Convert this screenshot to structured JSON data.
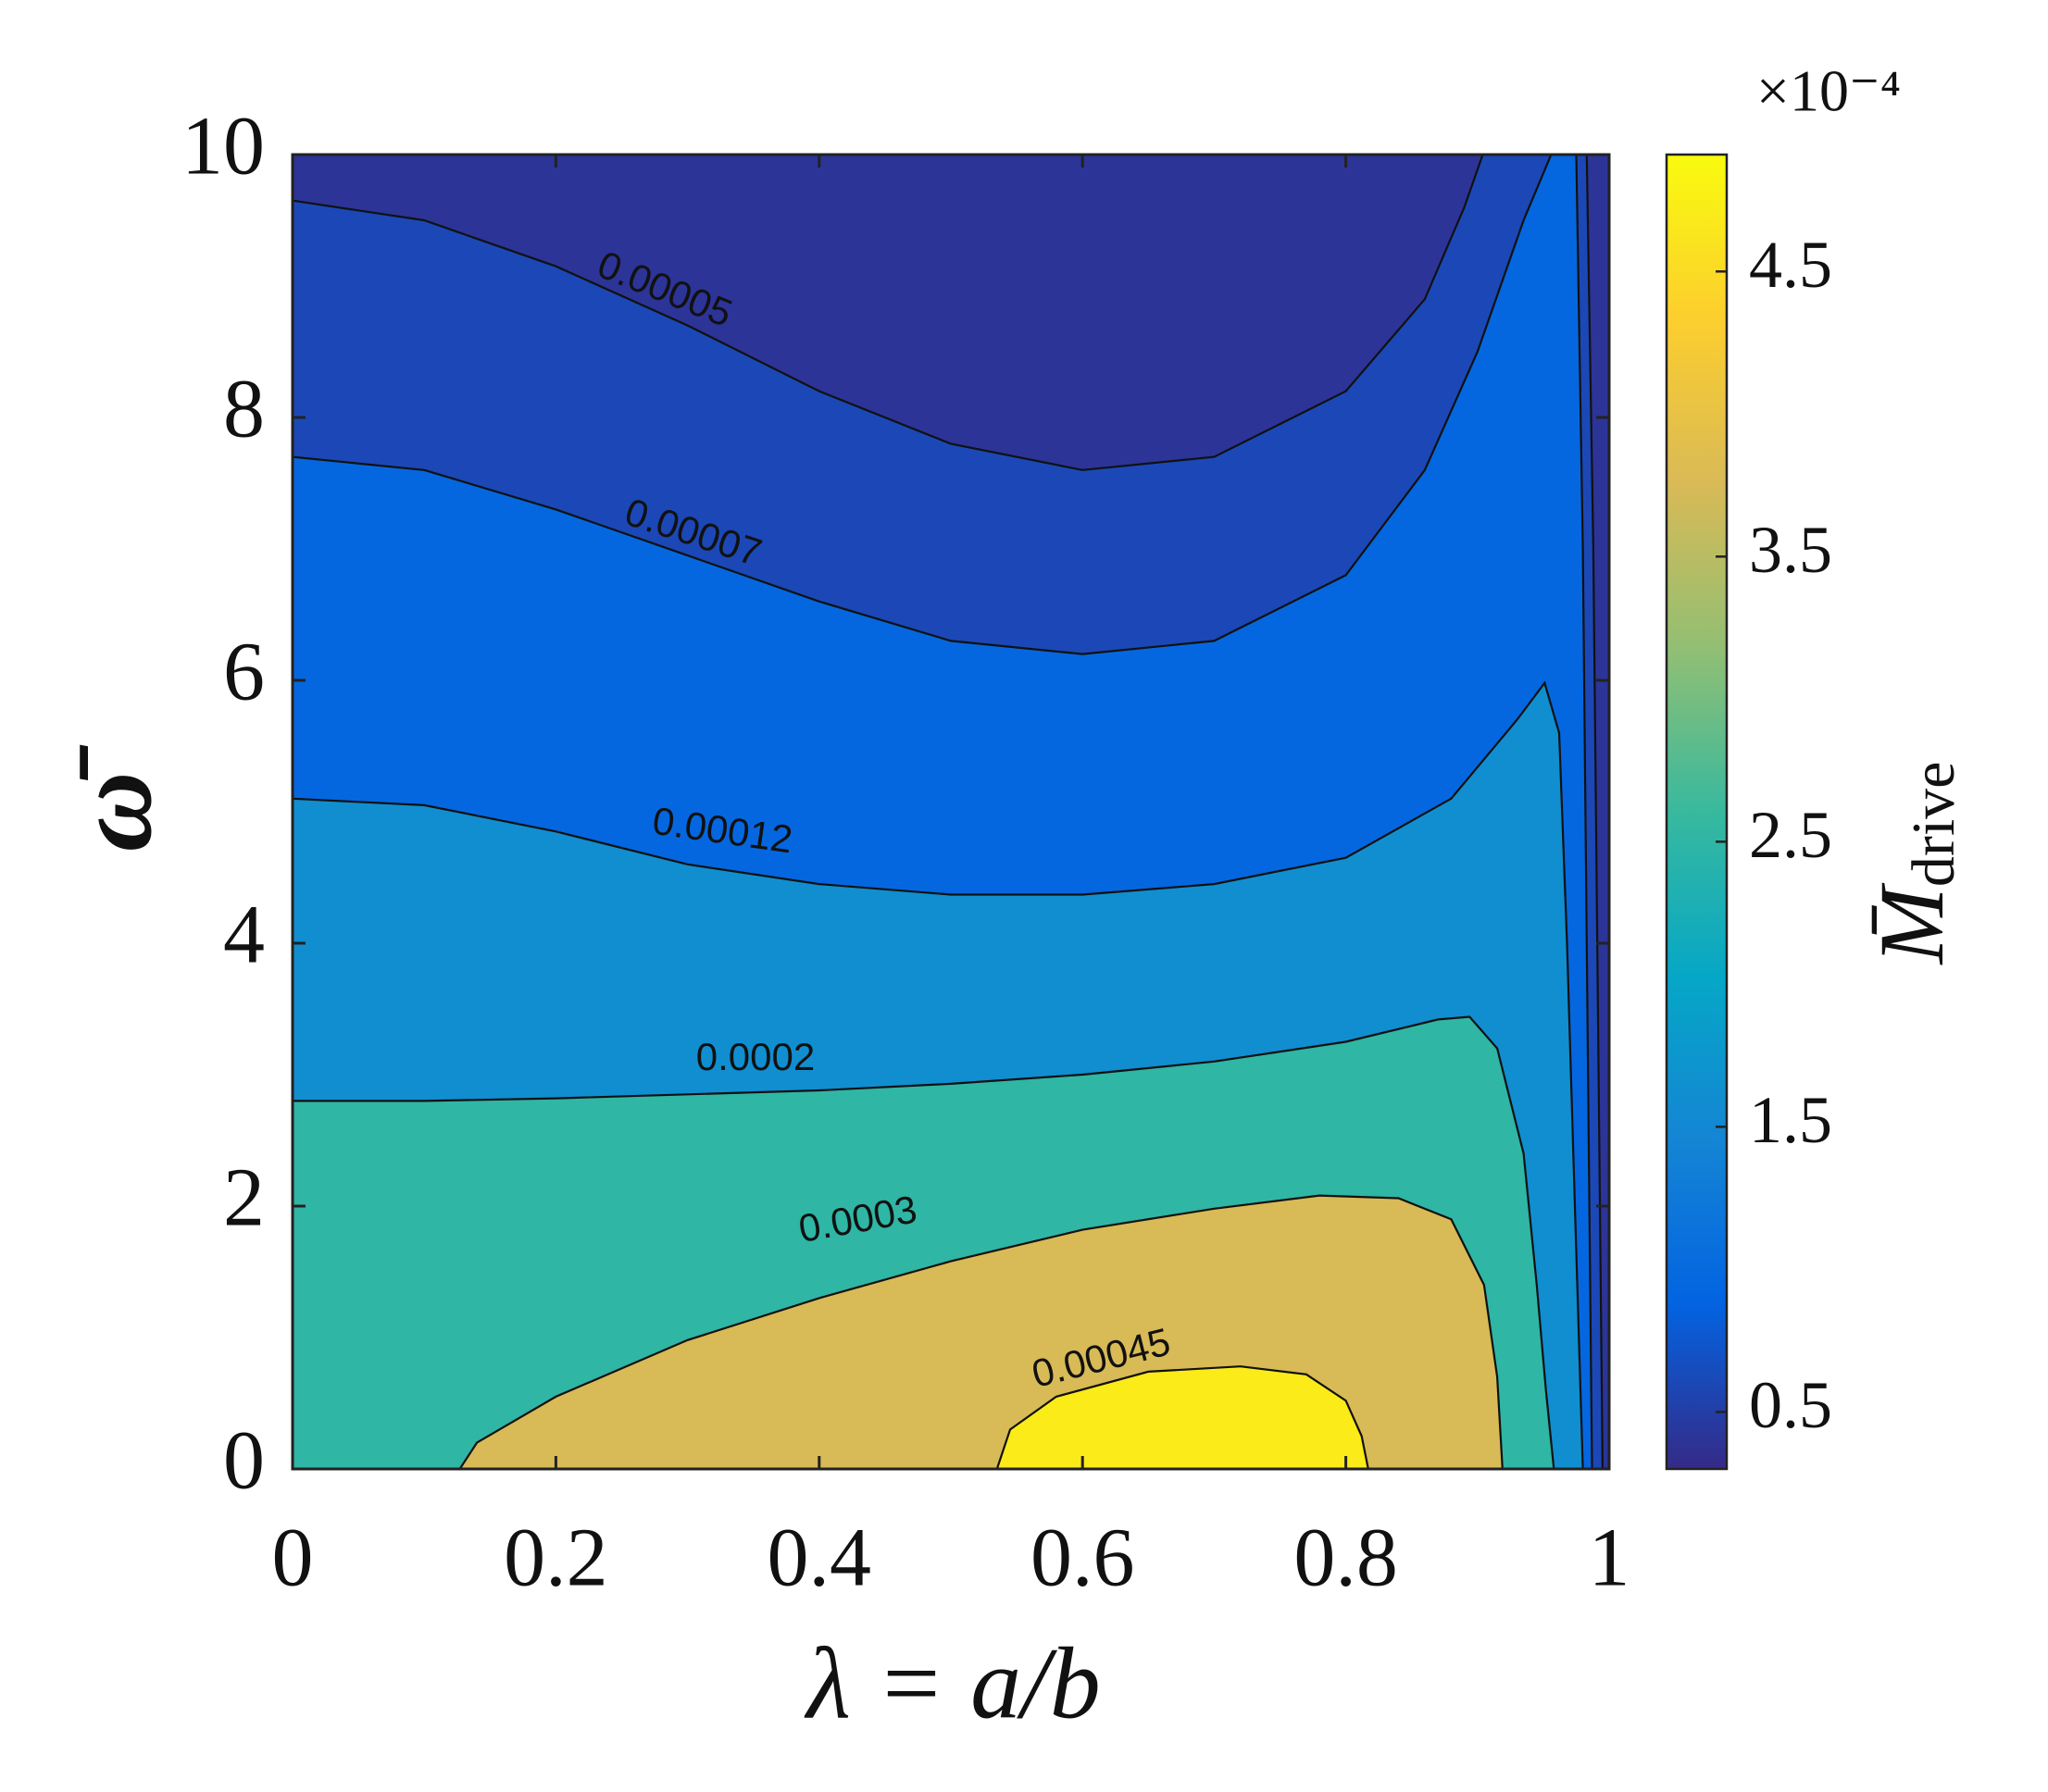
{
  "chart_data": {
    "type": "contour",
    "xlabel": "λ = a/b",
    "ylabel": "ω̄",
    "colorbar_symbol": "M̄",
    "colorbar_subscript": "drive",
    "colorbar_multiplier": "×10⁻⁴",
    "xlim": [
      0,
      1
    ],
    "ylim": [
      0,
      10
    ],
    "xticks": [
      0,
      0.2,
      0.4,
      0.6,
      0.8,
      1
    ],
    "yticks": [
      0,
      2,
      4,
      6,
      8,
      10
    ],
    "clim": [
      3e-05,
      0.000491
    ],
    "cticks": [
      {
        "value": 5e-05,
        "label": "0.5"
      },
      {
        "value": 0.00015,
        "label": "1.5"
      },
      {
        "value": 0.00025,
        "label": "2.5"
      },
      {
        "value": 0.00035,
        "label": "3.5"
      },
      {
        "value": 0.00045,
        "label": "4.5"
      }
    ],
    "colormap": "parula",
    "contours": [
      {
        "level": 5e-05,
        "x": [
          0,
          0.1,
          0.2,
          0.3,
          0.4,
          0.5,
          0.6,
          0.7,
          0.8,
          0.86,
          0.89,
          0.904,
          null,
          0.983,
          0.988,
          0.992,
          0.995
        ],
        "y": [
          9.65,
          9.5,
          9.15,
          8.7,
          8.2,
          7.8,
          7.6,
          7.7,
          8.2,
          8.9,
          9.6,
          10,
          null,
          10,
          7,
          3,
          0
        ]
      },
      {
        "level": 7e-05,
        "x": [
          0,
          0.1,
          0.2,
          0.3,
          0.4,
          0.5,
          0.6,
          0.7,
          0.8,
          0.86,
          0.9,
          0.935,
          0.956,
          null,
          0.975,
          0.98,
          0.984,
          0.987
        ],
        "y": [
          7.7,
          7.6,
          7.3,
          6.95,
          6.6,
          6.3,
          6.2,
          6.3,
          6.8,
          7.6,
          8.5,
          9.5,
          10,
          null,
          10,
          7,
          3,
          0
        ]
      },
      {
        "level": 0.00012,
        "x": [
          0,
          0.1,
          0.2,
          0.3,
          0.4,
          0.5,
          0.6,
          0.7,
          0.8,
          0.88,
          0.93,
          0.951,
          0.962,
          0.968,
          0.974,
          0.98
        ],
        "y": [
          5.1,
          5.05,
          4.85,
          4.6,
          4.45,
          4.37,
          4.37,
          4.45,
          4.65,
          5.1,
          5.7,
          5.98,
          5.6,
          4,
          2,
          0
        ]
      },
      {
        "level": 0.0002,
        "x": [
          0,
          0.1,
          0.2,
          0.3,
          0.4,
          0.5,
          0.6,
          0.7,
          0.8,
          0.87,
          0.894,
          0.915,
          0.935,
          0.945,
          0.952,
          0.958
        ],
        "y": [
          2.8,
          2.8,
          2.82,
          2.85,
          2.88,
          2.93,
          3.0,
          3.1,
          3.25,
          3.42,
          3.44,
          3.2,
          2.4,
          1.4,
          0.6,
          0
        ]
      },
      {
        "level": 0.0003,
        "x": [
          0.127,
          0.14,
          0.2,
          0.3,
          0.4,
          0.5,
          0.6,
          0.7,
          0.78,
          0.84,
          0.88,
          0.905,
          0.915,
          0.919
        ],
        "y": [
          0,
          0.2,
          0.55,
          0.98,
          1.3,
          1.58,
          1.82,
          1.98,
          2.08,
          2.06,
          1.9,
          1.4,
          0.7,
          0
        ]
      },
      {
        "level": 0.00045,
        "x": [
          0.535,
          0.545,
          0.58,
          0.65,
          0.72,
          0.77,
          0.8,
          0.812,
          0.817
        ],
        "y": [
          0,
          0.3,
          0.55,
          0.74,
          0.78,
          0.72,
          0.52,
          0.25,
          0
        ]
      }
    ]
  }
}
